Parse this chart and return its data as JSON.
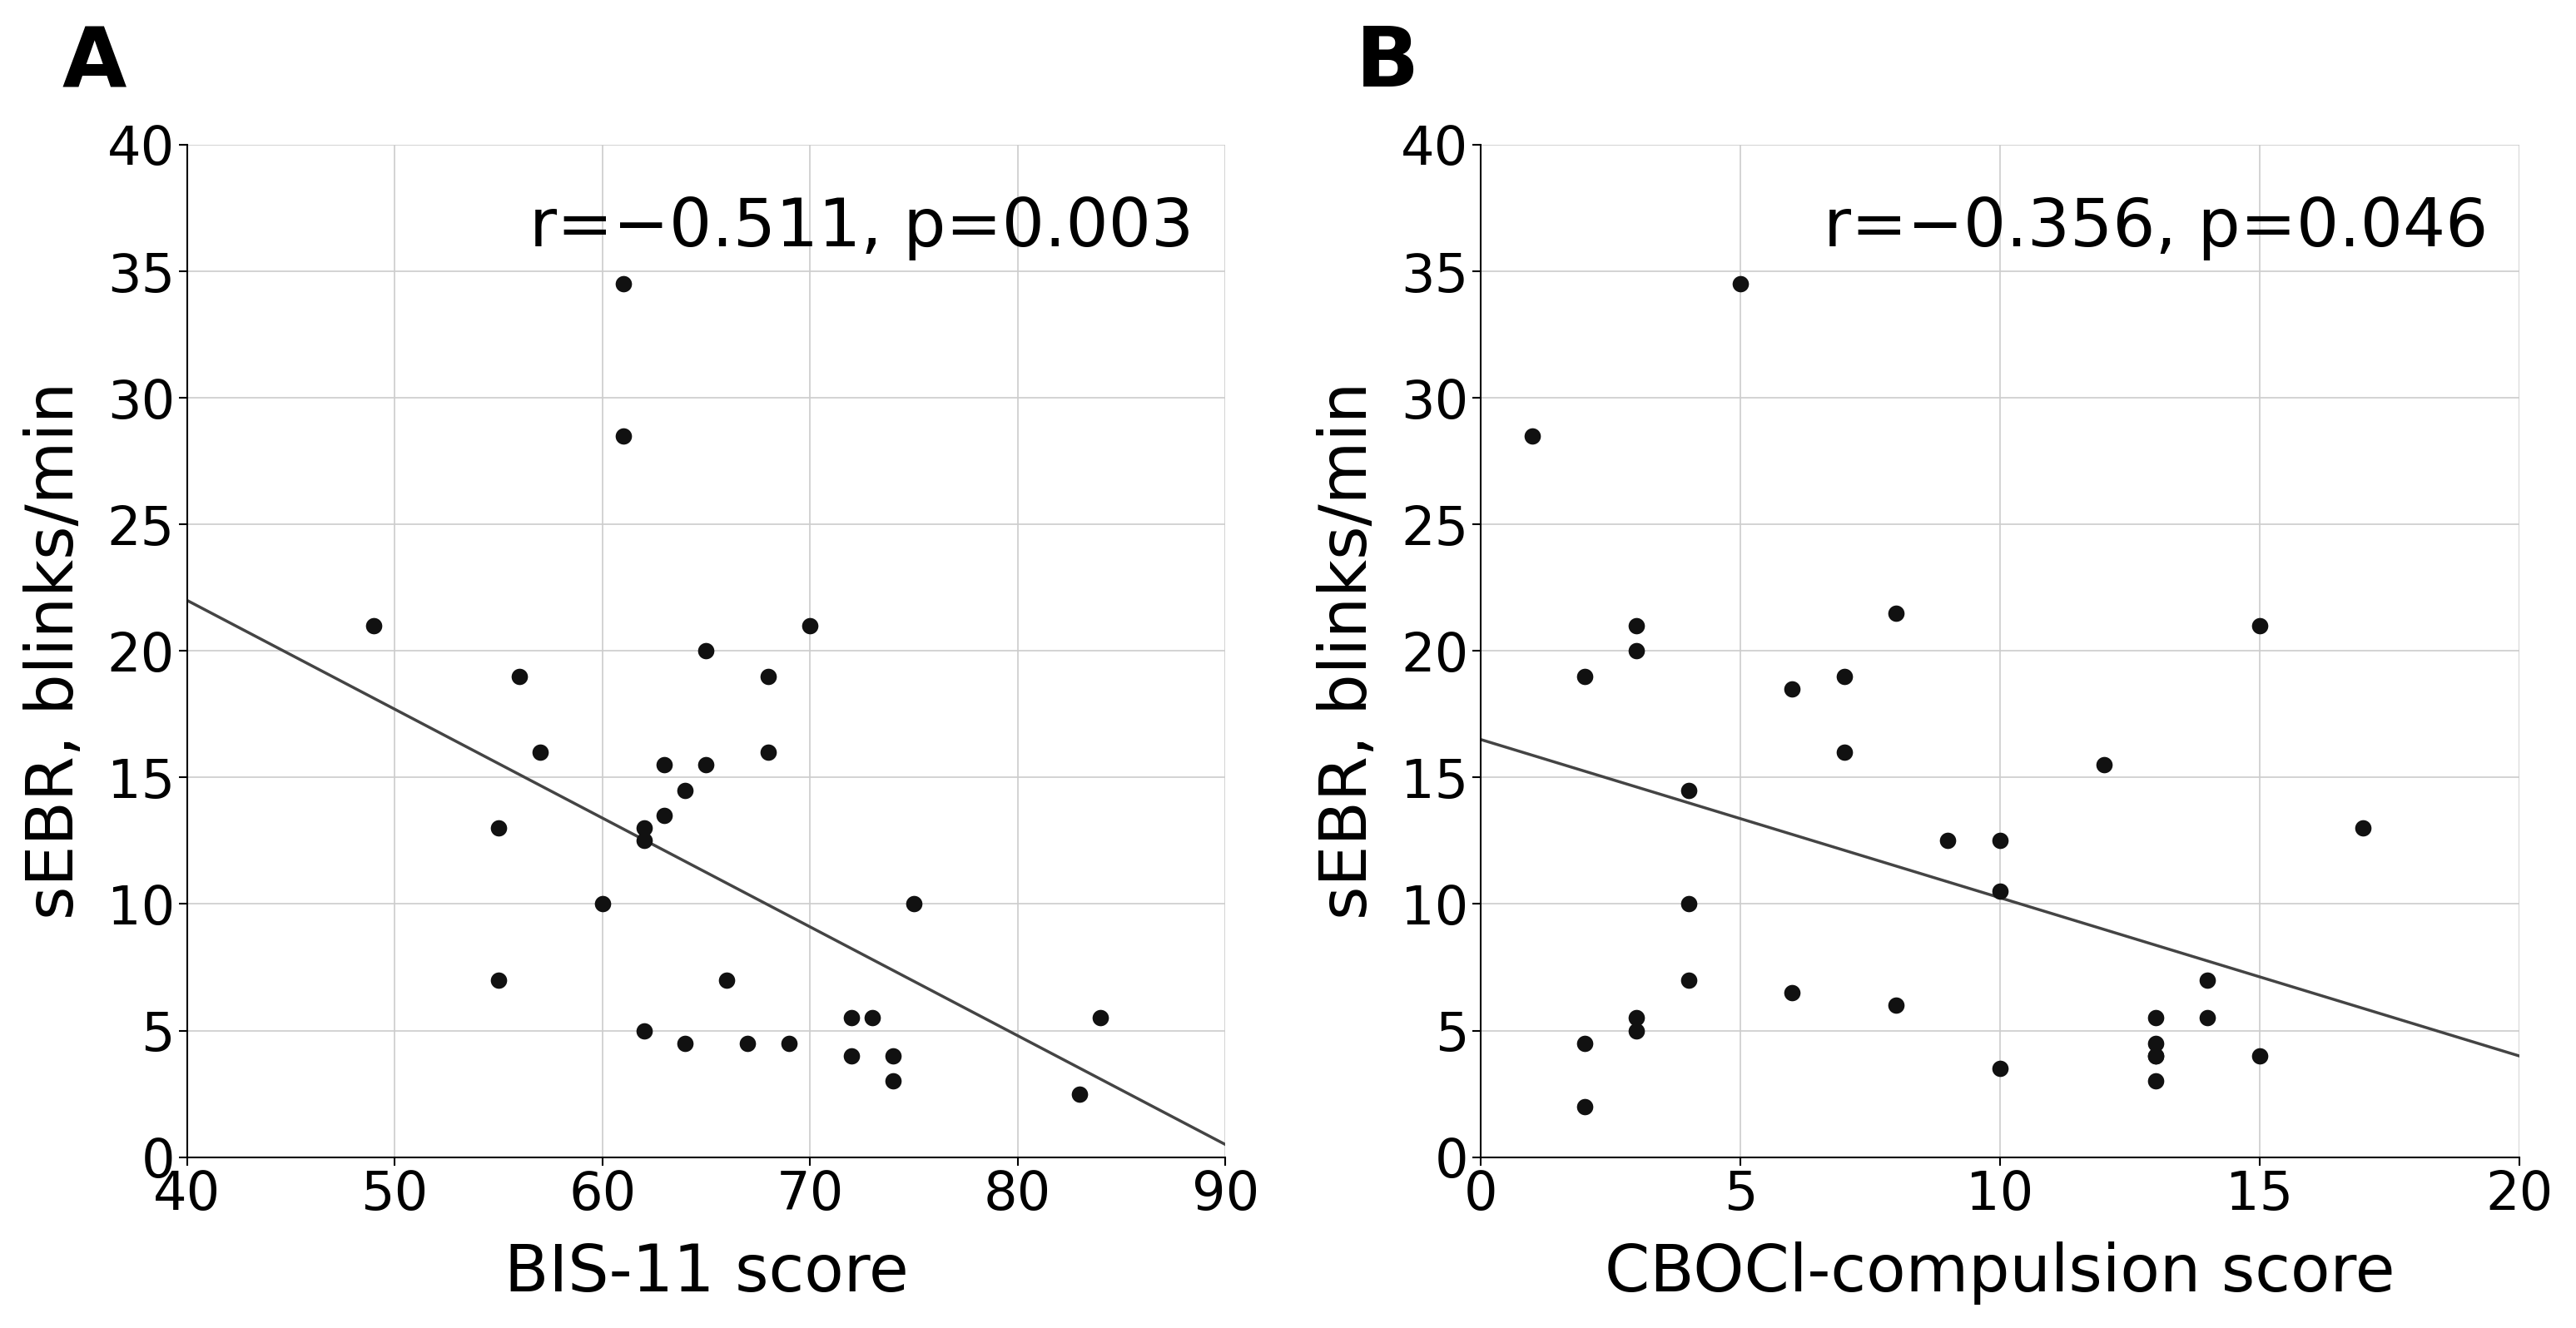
{
  "panel_A": {
    "title": "A",
    "xlabel": "BIS-11 score",
    "ylabel": "sEBR, blinks/min",
    "annotation": "r=−0.511, p=0.003",
    "xlim": [
      40,
      90
    ],
    "ylim": [
      0,
      40
    ],
    "xticks": [
      40,
      50,
      60,
      70,
      80,
      90
    ],
    "yticks": [
      0,
      5,
      10,
      15,
      20,
      25,
      30,
      35,
      40
    ],
    "scatter_x": [
      49,
      55,
      55,
      56,
      57,
      60,
      61,
      61,
      62,
      62,
      62,
      63,
      63,
      64,
      64,
      65,
      65,
      66,
      67,
      68,
      68,
      69,
      70,
      72,
      72,
      73,
      74,
      74,
      75,
      83,
      84
    ],
    "scatter_y": [
      21,
      13,
      7,
      19,
      16,
      10,
      34.5,
      28.5,
      13,
      12.5,
      5,
      15.5,
      13.5,
      14.5,
      4.5,
      20,
      15.5,
      7,
      4.5,
      19,
      16,
      4.5,
      21,
      5.5,
      4,
      5.5,
      3,
      4,
      10,
      2.5,
      5.5
    ],
    "line_x": [
      40,
      90
    ],
    "line_y": [
      22,
      0.5
    ]
  },
  "panel_B": {
    "title": "B",
    "xlabel": "CBOCl-compulsion score",
    "ylabel": "sEBR, blinks/min",
    "annotation": "r=−0.356, p=0.046",
    "xlim": [
      0,
      20
    ],
    "ylim": [
      0,
      40
    ],
    "xticks": [
      0,
      5,
      10,
      15,
      20
    ],
    "yticks": [
      0,
      5,
      10,
      15,
      20,
      25,
      30,
      35,
      40
    ],
    "scatter_x": [
      1,
      2,
      2,
      2,
      3,
      3,
      3,
      3,
      4,
      4,
      4,
      5,
      6,
      6,
      7,
      7,
      8,
      8,
      9,
      10,
      10,
      10,
      12,
      13,
      13,
      13,
      13,
      13,
      14,
      14,
      15,
      15,
      17
    ],
    "scatter_y": [
      28.5,
      19,
      4.5,
      2,
      21,
      20,
      5.5,
      5,
      14.5,
      10,
      7,
      34.5,
      18.5,
      6.5,
      16,
      19,
      21.5,
      6,
      12.5,
      10.5,
      12.5,
      3.5,
      15.5,
      5.5,
      4.5,
      4,
      4,
      3,
      7,
      5.5,
      21,
      4,
      13
    ],
    "line_x": [
      0,
      20
    ],
    "line_y": [
      16.5,
      4.0
    ]
  },
  "scatter_color": "#111111",
  "scatter_size": 200,
  "line_color": "#444444",
  "line_width": 2.5,
  "background_color": "#ffffff",
  "grid_color": "#cccccc",
  "panel_title_fontsize": 72,
  "label_fontsize": 56,
  "tick_fontsize": 46,
  "annotation_fontsize": 58
}
